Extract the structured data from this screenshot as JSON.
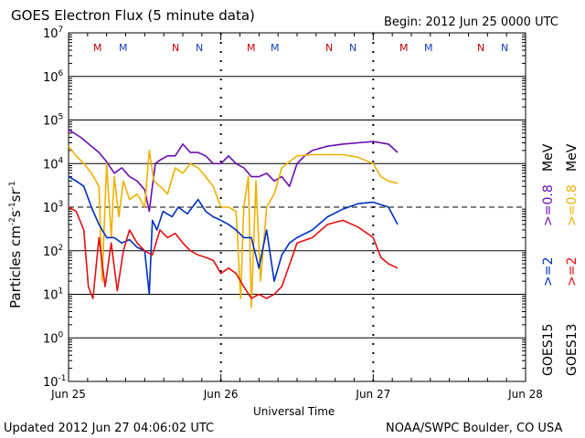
{
  "header": {
    "title": "GOES Electron Flux (5 minute data)",
    "begin": "Begin: 2012 Jun 25 0000 UTC"
  },
  "footer": {
    "updated": "Updated 2012 Jun 27 04:06:02 UTC",
    "credit": "NOAA/SWPC Boulder, CO USA"
  },
  "axes": {
    "ylabel_base": "Particles cm",
    "ylabel_sup1": "-2",
    "ylabel_mid1": "s",
    "ylabel_sup2": "-1",
    "ylabel_mid2": "sr",
    "ylabel_sup3": "-1",
    "xlabel": "Universal Time",
    "y_tick_base": "10",
    "y_exponents": [
      "7",
      "6",
      "5",
      "4",
      "3",
      "2",
      "1",
      "0",
      "-1"
    ],
    "x_ticks": [
      "Jun 25",
      "Jun 26",
      "Jun 27",
      "Jun 28"
    ]
  },
  "legend": {
    "goes15": "GOES15",
    "goes13": "GOES13",
    "g15_ge2": ">=2",
    "g13_ge2": ">=2",
    "g15_ge08": ">=0.8",
    "g13_ge08": ">=0.8",
    "unit": "MeV"
  },
  "colors": {
    "g15_ge08": "#6a0dad",
    "g13_ge08": "#f0b000",
    "g15_ge2": "#0030c0",
    "g13_ge2": "#e01010",
    "marker_m": "#c00000",
    "marker_m2": "#1040c0",
    "marker_n": "#c00000",
    "marker_n2": "#1040c0"
  },
  "markers": {
    "m1": "M",
    "m2": "M",
    "n1": "N",
    "n2": "N",
    "m3": "M",
    "m4": "M",
    "n3": "N",
    "n4": "N",
    "m5": "M",
    "m6": "M",
    "n5": "N",
    "n6": "N"
  },
  "chart_data": {
    "type": "line",
    "title": "GOES Electron Flux (5 minute data)",
    "xlabel": "Universal Time",
    "ylabel": "Particles cm^-2 s^-1 sr^-1",
    "x_unit": "days since 2012 Jun 25 0000 UTC",
    "xlim": [
      0,
      3
    ],
    "ylim_log10": [
      -1,
      7
    ],
    "alert_threshold": 1000,
    "series": [
      {
        "name": "GOES15 >=0.8 MeV",
        "color_key": "g15_ge08",
        "x": [
          0,
          0.08,
          0.15,
          0.2,
          0.25,
          0.3,
          0.35,
          0.4,
          0.45,
          0.5,
          0.53,
          0.55,
          0.57,
          0.6,
          0.65,
          0.7,
          0.75,
          0.8,
          0.85,
          0.9,
          0.95,
          1.0,
          1.05,
          1.1,
          1.15,
          1.2,
          1.25,
          1.3,
          1.35,
          1.4,
          1.45,
          1.5,
          1.55,
          1.6,
          1.7,
          1.8,
          1.9,
          2.0,
          2.1,
          2.16
        ],
        "y": [
          60000,
          40000,
          25000,
          18000,
          11000,
          6000,
          8000,
          5000,
          4000,
          2500,
          800,
          3000,
          10000,
          12000,
          15000,
          15000,
          28000,
          18000,
          18000,
          15000,
          10000,
          10000,
          15000,
          10000,
          8000,
          5000,
          5000,
          6000,
          4000,
          5000,
          3000,
          10000,
          15000,
          20000,
          25000,
          28000,
          30000,
          32000,
          28000,
          18000
        ]
      },
      {
        "name": "GOES13 >=0.8 MeV",
        "color_key": "g13_ge08",
        "x": [
          0,
          0.05,
          0.1,
          0.15,
          0.2,
          0.22,
          0.25,
          0.28,
          0.3,
          0.33,
          0.36,
          0.4,
          0.45,
          0.5,
          0.53,
          0.56,
          0.6,
          0.65,
          0.7,
          0.75,
          0.8,
          0.85,
          0.9,
          0.95,
          1.0,
          1.05,
          1.1,
          1.13,
          1.15,
          1.18,
          1.2,
          1.23,
          1.26,
          1.3,
          1.35,
          1.4,
          1.5,
          1.6,
          1.7,
          1.8,
          1.9,
          2.0,
          2.05,
          2.1,
          2.16
        ],
        "y": [
          25000,
          15000,
          10000,
          6000,
          3000,
          20,
          10000,
          200,
          5000,
          600,
          4000,
          1500,
          2000,
          1000,
          20000,
          4000,
          3000,
          2000,
          8000,
          6000,
          10000,
          8000,
          5000,
          3000,
          1000,
          1000,
          800,
          8,
          1000,
          5000,
          5,
          4000,
          20,
          1000,
          2000,
          8000,
          15000,
          16000,
          16000,
          16000,
          14000,
          10000,
          5000,
          4000,
          3500
        ]
      },
      {
        "name": "GOES15 >=2 MeV",
        "color_key": "g15_ge2",
        "x": [
          0,
          0.05,
          0.1,
          0.15,
          0.2,
          0.25,
          0.3,
          0.35,
          0.4,
          0.45,
          0.5,
          0.53,
          0.55,
          0.58,
          0.62,
          0.68,
          0.72,
          0.78,
          0.85,
          0.9,
          0.95,
          1.0,
          1.05,
          1.1,
          1.15,
          1.2,
          1.25,
          1.3,
          1.35,
          1.4,
          1.45,
          1.5,
          1.6,
          1.7,
          1.8,
          1.9,
          2.0,
          2.1,
          2.16
        ],
        "y": [
          5000,
          4000,
          3000,
          1000,
          400,
          200,
          200,
          150,
          180,
          120,
          100,
          10,
          500,
          300,
          800,
          600,
          1000,
          700,
          1500,
          800,
          600,
          500,
          400,
          300,
          200,
          200,
          40,
          300,
          20,
          80,
          150,
          200,
          300,
          600,
          900,
          1200,
          1300,
          1000,
          400
        ]
      },
      {
        "name": "GOES13 >=2 MeV",
        "color_key": "g13_ge2",
        "x": [
          0,
          0.05,
          0.1,
          0.13,
          0.16,
          0.2,
          0.24,
          0.28,
          0.32,
          0.36,
          0.4,
          0.45,
          0.5,
          0.55,
          0.6,
          0.65,
          0.7,
          0.75,
          0.8,
          0.85,
          0.9,
          0.95,
          1.0,
          1.05,
          1.1,
          1.15,
          1.2,
          1.25,
          1.3,
          1.35,
          1.4,
          1.5,
          1.6,
          1.7,
          1.8,
          1.9,
          2.0,
          2.05,
          2.1,
          2.16
        ],
        "y": [
          1000,
          800,
          300,
          15,
          8,
          200,
          15,
          150,
          12,
          100,
          300,
          150,
          100,
          80,
          300,
          200,
          250,
          150,
          100,
          80,
          70,
          60,
          30,
          40,
          30,
          15,
          8,
          10,
          8,
          10,
          15,
          150,
          200,
          400,
          500,
          350,
          200,
          70,
          50,
          40
        ]
      }
    ]
  }
}
